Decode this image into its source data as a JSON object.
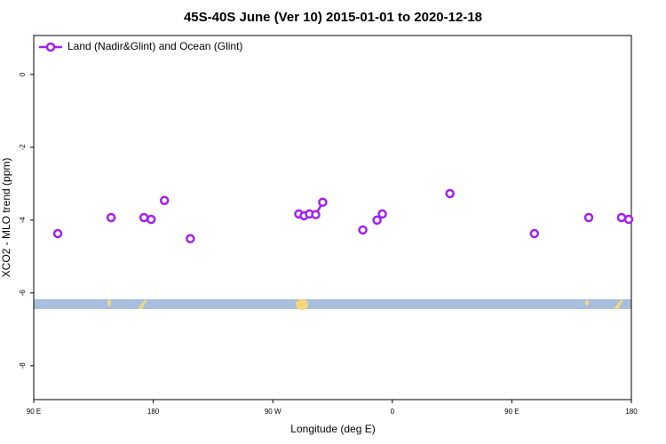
{
  "chart_data": {
    "type": "line",
    "title": "45S-40S June (Ver 10)   2015-01-01 to 2020-12-18",
    "x_label": "Longitude (deg E)",
    "y_label": "XCO2 - MLO trend (ppm)",
    "xlim": [
      90,
      540
    ],
    "xticks": [
      {
        "value": 90,
        "label": "90 E"
      },
      {
        "value": 180,
        "label": "180"
      },
      {
        "value": 270,
        "label": "90 W"
      },
      {
        "value": 360,
        "label": "0"
      },
      {
        "value": 450,
        "label": "90 E"
      },
      {
        "value": 540,
        "label": "180"
      }
    ],
    "ylim": [
      -8.93,
      1.07
    ],
    "yticks": [
      -8,
      -6,
      -4,
      -2,
      0
    ],
    "legend": "top-left",
    "series": [
      {
        "name": "Land (Nadir&Glint) and Ocean (Glint)",
        "color": "#a020f0",
        "x": [
          108.1,
          148.3,
          173.0,
          178.4,
          188.4,
          207.9,
          289.6,
          293.6,
          297.6,
          302.3,
          307.6,
          337.8,
          348.5,
          352.5,
          403.4,
          467.0,
          507.9,
          532.6,
          538.0
        ],
        "values": [
          -4.37,
          -3.93,
          -3.93,
          -3.98,
          -3.46,
          -4.51,
          -3.83,
          -3.88,
          -3.83,
          -3.85,
          -3.51,
          -4.27,
          -4.0,
          -3.83,
          -3.27,
          -4.37,
          -3.93,
          -3.93,
          -3.98
        ]
      }
    ]
  }
}
